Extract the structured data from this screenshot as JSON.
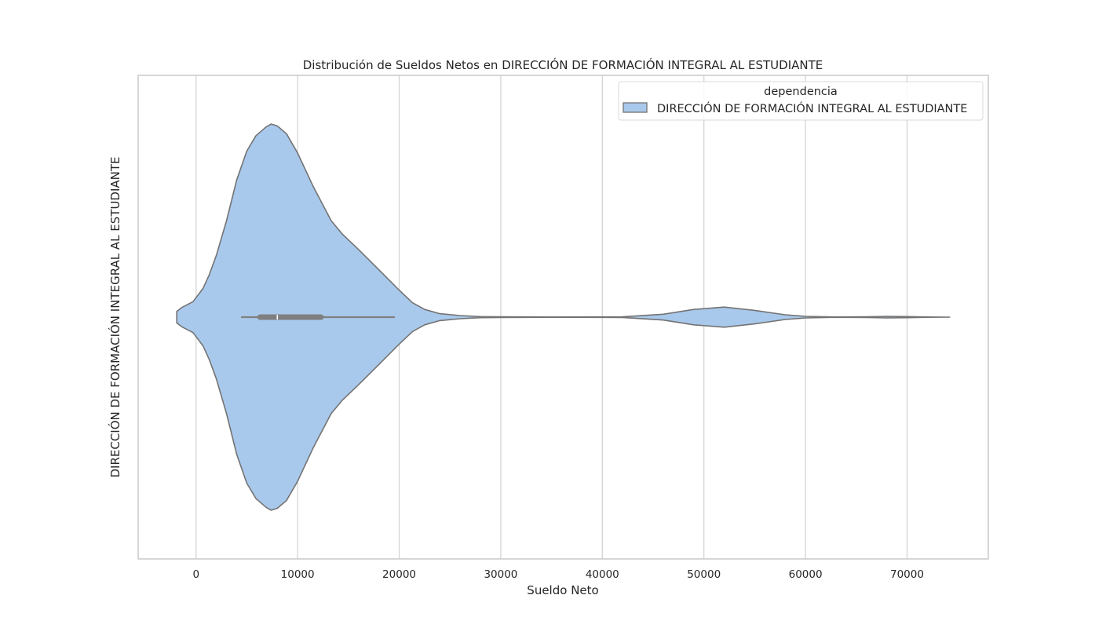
{
  "chart_data": {
    "type": "violin",
    "title": "Distribución de Sueldos Netos en DIRECCIÓN DE FORMACIÓN INTEGRAL AL ESTUDIANTE",
    "xlabel": "Sueldo Neto",
    "ylabel": "DIRECCIÓN DE FORMACIÓN INTEGRAL AL ESTUDIANTE",
    "xlim": [
      -5700,
      78000
    ],
    "xticks": [
      0,
      10000,
      20000,
      30000,
      40000,
      50000,
      60000,
      70000
    ],
    "grid": true,
    "legend": {
      "title": "dependencia",
      "placement": "top-right",
      "entries": [
        "DIRECCIÓN DE FORMACIÓN INTEGRAL AL ESTUDIANTE"
      ]
    },
    "series": [
      {
        "name": "DIRECCIÓN DE FORMACIÓN INTEGRAL AL ESTUDIANTE",
        "color": "#a9c9ec",
        "edge_color": "#737373",
        "density_profile": [
          [
            -1900,
            0.03
          ],
          [
            -1400,
            0.05
          ],
          [
            -300,
            0.08
          ],
          [
            700,
            0.15
          ],
          [
            1300,
            0.22
          ],
          [
            2000,
            0.32
          ],
          [
            3000,
            0.5
          ],
          [
            4000,
            0.71
          ],
          [
            5000,
            0.86
          ],
          [
            5900,
            0.94
          ],
          [
            6900,
            0.985
          ],
          [
            7400,
            1.0
          ],
          [
            8000,
            0.99
          ],
          [
            8900,
            0.95
          ],
          [
            10000,
            0.85
          ],
          [
            11500,
            0.68
          ],
          [
            13300,
            0.5
          ],
          [
            14400,
            0.43
          ],
          [
            16000,
            0.35
          ],
          [
            18000,
            0.245
          ],
          [
            20000,
            0.14
          ],
          [
            21300,
            0.075
          ],
          [
            22500,
            0.04
          ],
          [
            24000,
            0.018
          ],
          [
            26000,
            0.008
          ],
          [
            28000,
            0.003
          ],
          [
            30000,
            0.0015
          ],
          [
            35000,
            0.001
          ],
          [
            42000,
            0.0015
          ],
          [
            46000,
            0.015
          ],
          [
            49000,
            0.04
          ],
          [
            52000,
            0.052
          ],
          [
            55000,
            0.035
          ],
          [
            58000,
            0.012
          ],
          [
            60000,
            0.004
          ],
          [
            63000,
            0.001
          ],
          [
            66000,
            0.002
          ],
          [
            68000,
            0.004
          ],
          [
            70000,
            0.003
          ],
          [
            72000,
            0.001
          ],
          [
            74200,
            0.0
          ]
        ],
        "whisker_low": 4500,
        "q1": 6300,
        "median": 8000,
        "q3": 12300,
        "whisker_high": 19500
      }
    ]
  }
}
